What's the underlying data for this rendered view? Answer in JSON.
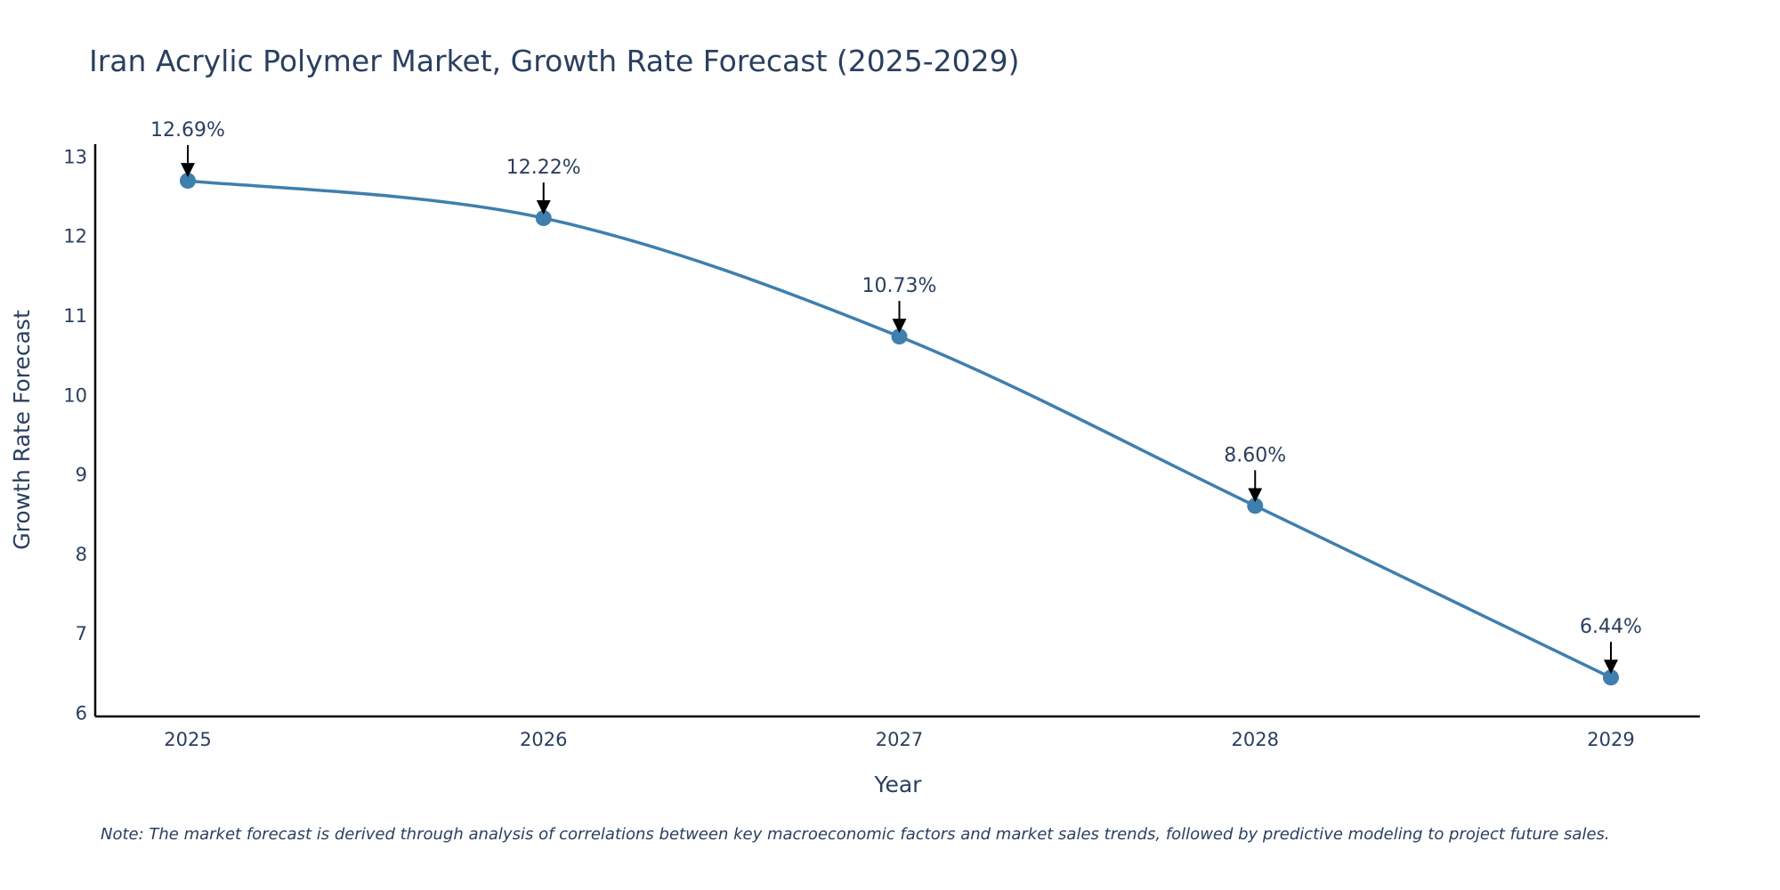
{
  "chart_data": {
    "type": "line",
    "title": "Iran Acrylic Polymer Market, Growth Rate Forecast (2025-2029)",
    "xlabel": "Year",
    "ylabel": "Growth Rate Forecast",
    "categories": [
      "2025",
      "2026",
      "2027",
      "2028",
      "2029"
    ],
    "series": [
      {
        "name": "Growth Rate Forecast",
        "values": [
          12.69,
          12.22,
          10.73,
          8.6,
          6.44
        ],
        "labels": [
          "12.69%",
          "12.22%",
          "10.73%",
          "8.60%",
          "6.44%"
        ]
      }
    ],
    "ylim": [
      5.95,
      13.15
    ],
    "yticks": [
      6,
      7,
      8,
      9,
      10,
      11,
      12,
      13
    ],
    "grid": false,
    "line_color": "#3f7fad",
    "marker_color": "#3f7fad",
    "note": "Note: The market forecast is derived through analysis of correlations between key macroeconomic factors and market sales trends, followed by predictive modeling to project future sales."
  }
}
